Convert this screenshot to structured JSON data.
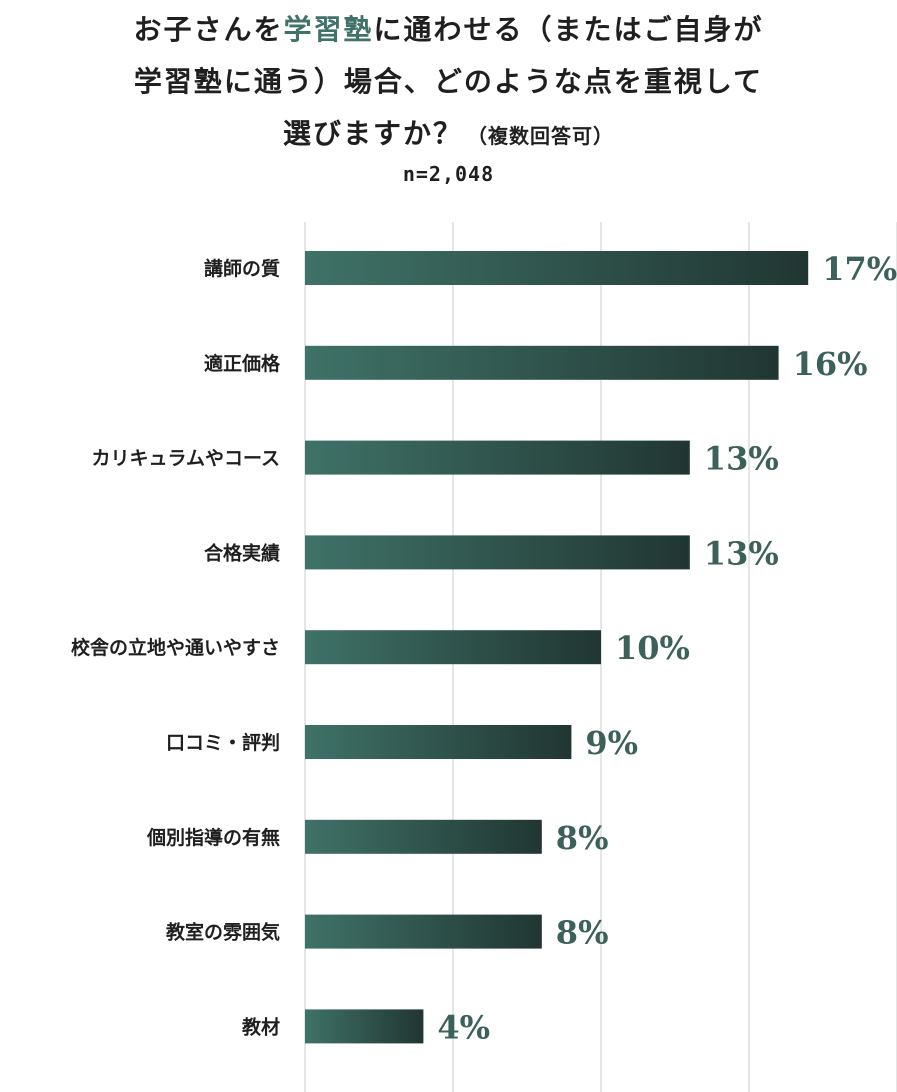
{
  "title": {
    "line1": {
      "before": "お子さんを",
      "highlight": "学習塾",
      "after": "に通わせる（またはご自身が"
    },
    "line2": "学習塾に通う）場合、どのような点を重視して",
    "line3_main": "選びますか？",
    "line3_note": "（複数回答可）"
  },
  "sample_size": "n=2,048",
  "colors": {
    "bar_start": "#3f7268",
    "bar_end": "#213632",
    "value_text": "#3c605a",
    "title_highlight": "#3f7268",
    "grid": "#d4d4d4"
  },
  "chart_data": {
    "type": "bar",
    "orientation": "horizontal",
    "title": "お子さんを学習塾に通わせる（またはご自身が学習塾に通う）場合、どのような点を重視して選びますか？（複数回答可）",
    "subtitle": "n=2,048",
    "categories": [
      "講師の質",
      "適正価格",
      "カリキュラムやコース",
      "合格実績",
      "校舎の立地や通いやすさ",
      "口コミ・評判",
      "個別指導の有無",
      "教室の雰囲気",
      "教材"
    ],
    "values": [
      17,
      16,
      13,
      13,
      10,
      9,
      8,
      8,
      4
    ],
    "value_labels": [
      "17%",
      "16%",
      "13%",
      "13%",
      "10%",
      "9%",
      "8%",
      "8%",
      "4%"
    ],
    "unit": "%",
    "xlim": [
      0,
      20
    ],
    "grid": true,
    "grid_ticks": [
      0,
      5,
      10,
      15,
      20
    ],
    "tick_labels_shown": false,
    "legend": "none"
  }
}
